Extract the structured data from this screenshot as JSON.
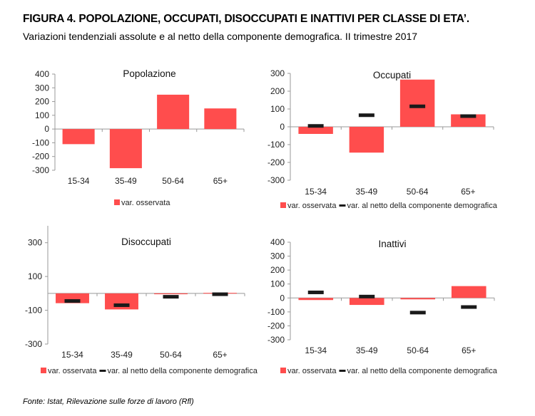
{
  "header": {
    "title": "FIGURA 4. POPOLAZIONE, OCCUPATI, DISOCCUPATI E INATTIVI PER CLASSE DI ETA’.",
    "subtitle": "Variazioni tendenziali assolute e al netto della componente demografica.  II trimestre 2017"
  },
  "footer": {
    "source": "Fonte: Istat, Rilevazione sulle forze di lavoro (Rfl)"
  },
  "colors": {
    "bar": "#ff4d4d",
    "net": "#1a1a1a",
    "axis": "#999999"
  },
  "chart_data": [
    {
      "type": "bar",
      "title": "Popolazione",
      "categories": [
        "15-34",
        "35-49",
        "50-64",
        "65+"
      ],
      "yticks": [
        400,
        300,
        200,
        100,
        0,
        -100,
        -200,
        -300
      ],
      "ylim": [
        -300,
        400
      ],
      "series": [
        {
          "name": "var. osservata",
          "values": [
            -110,
            -285,
            250,
            150
          ]
        }
      ],
      "legend": [
        "var. osservata"
      ]
    },
    {
      "type": "bar",
      "title": "Occupati",
      "categories": [
        "15-34",
        "35-49",
        "50-64",
        "65+"
      ],
      "yticks": [
        300,
        200,
        100,
        0,
        -100,
        -200,
        -300
      ],
      "ylim": [
        -300,
        300
      ],
      "series": [
        {
          "name": "var. osservata",
          "values": [
            -40,
            -145,
            265,
            70
          ]
        },
        {
          "name": "var. al netto della componente demografica",
          "values": [
            5,
            65,
            115,
            60
          ]
        }
      ],
      "legend": [
        "var. osservata",
        "var. al netto della componente demografica"
      ]
    },
    {
      "type": "bar",
      "title": "Disoccupati",
      "categories": [
        "15-34",
        "35-49",
        "50-64",
        "65+"
      ],
      "yticks": [
        300,
        100,
        -100,
        -300
      ],
      "ylim": [
        -300,
        400
      ],
      "series": [
        {
          "name": "var. osservata",
          "values": [
            -58,
            -95,
            -5,
            3
          ]
        },
        {
          "name": "var. al netto della componente demografica",
          "values": [
            -45,
            -70,
            -20,
            -5
          ]
        }
      ],
      "legend": [
        "var. osservata",
        "var. al netto della componente demografica"
      ]
    },
    {
      "type": "bar",
      "title": "Inattivi",
      "categories": [
        "15-34",
        "35-49",
        "50-64",
        "65+"
      ],
      "yticks": [
        400,
        300,
        200,
        100,
        0,
        -100,
        -200,
        -300
      ],
      "ylim": [
        -300,
        400
      ],
      "series": [
        {
          "name": "var. osservata",
          "values": [
            -15,
            -50,
            -10,
            85
          ]
        },
        {
          "name": "var. al netto della componente demografica",
          "values": [
            40,
            10,
            -105,
            -65
          ]
        }
      ],
      "legend": [
        "var. osservata",
        "var. al netto della componente demografica"
      ]
    }
  ]
}
